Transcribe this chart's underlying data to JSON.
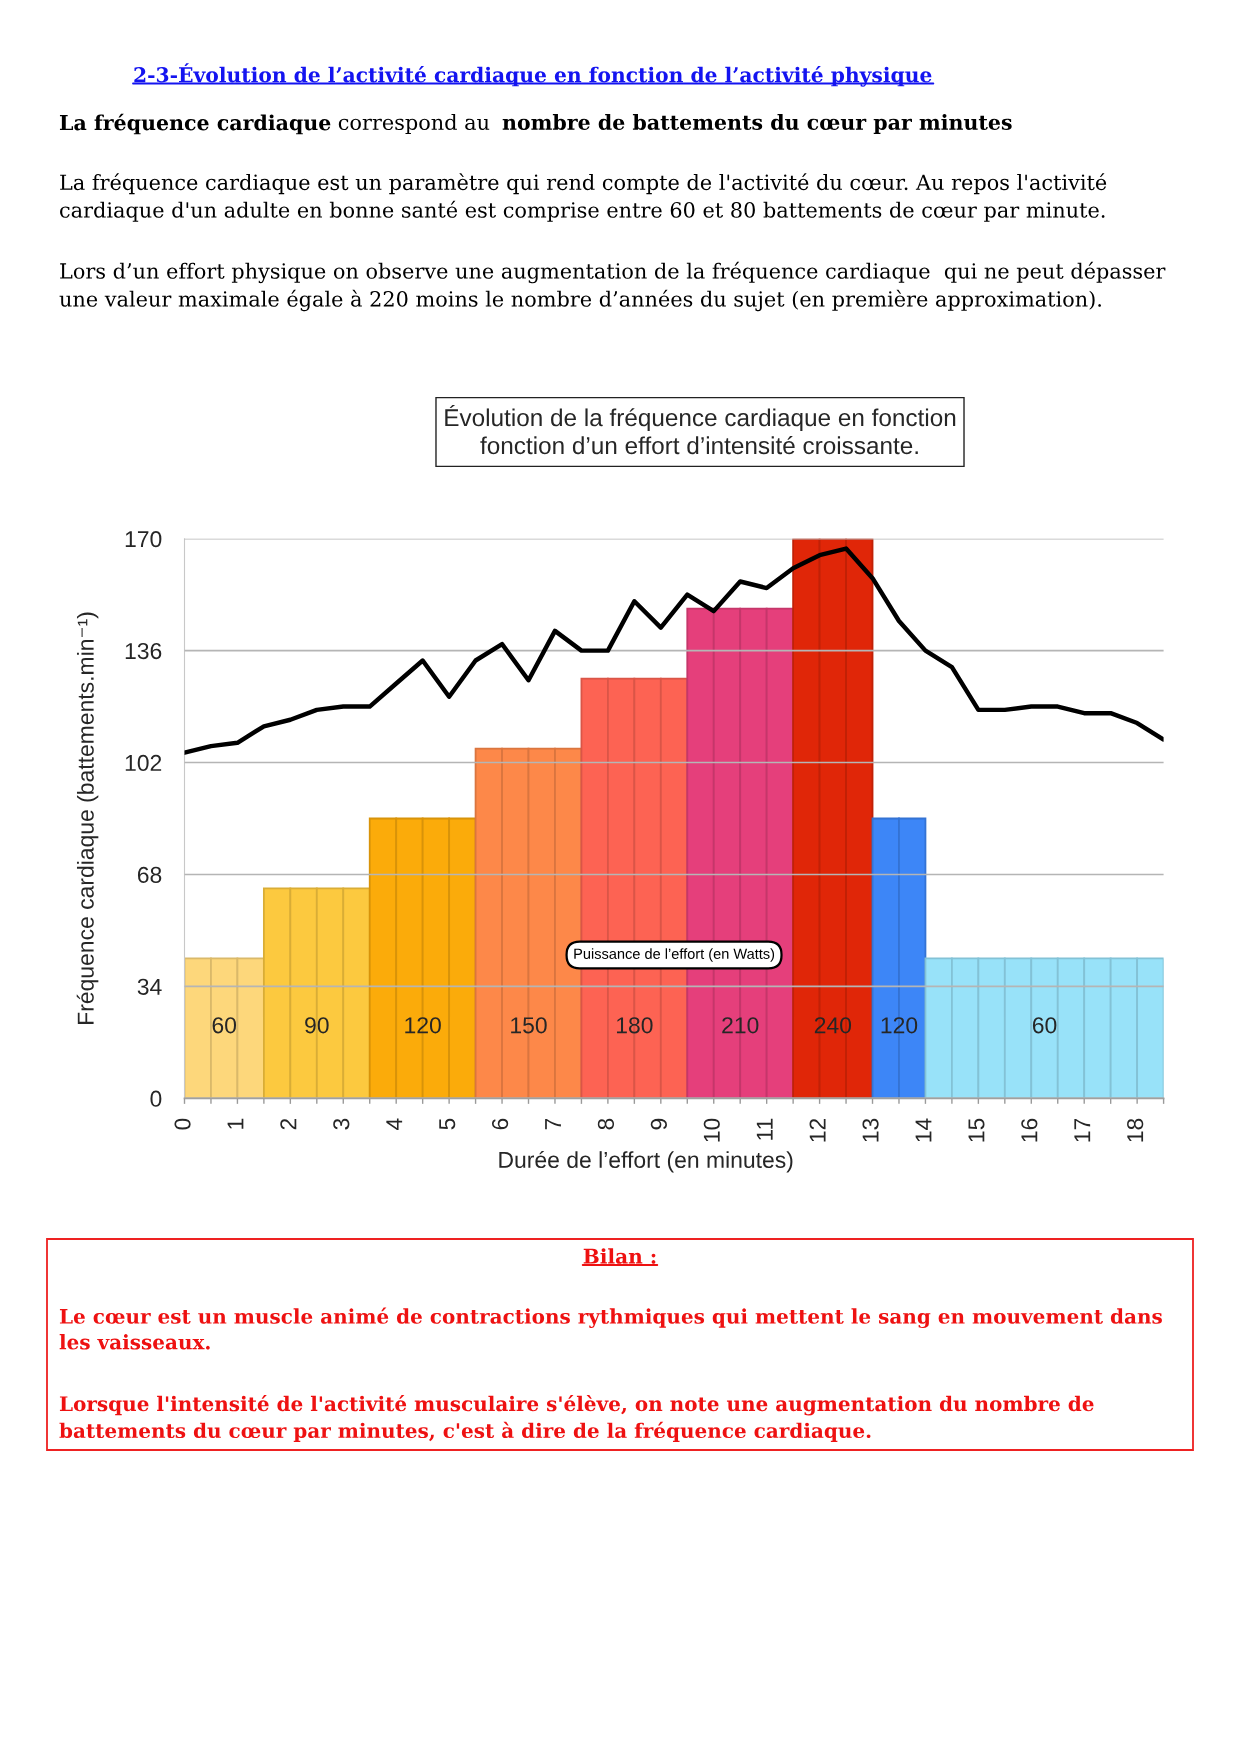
{
  "chart_data": {
    "type": "bar",
    "title": "Évolution de la fréquence cardiaque en fonction\nfonction d’un effort d’intensité croissante.",
    "xlabel": "Durée de l’effort (en minutes)",
    "ylabel": "Fréquence cardiaque (battements.min⁻¹)",
    "series": [
      {
        "axis": "y2",
        "x": [
          0.25,
          0.75,
          1.25,
          1.75,
          2.25,
          2.75,
          3.25,
          3.75,
          4.25,
          4.75,
          5.25,
          5.75,
          6.25,
          6.75,
          7.25,
          7.75,
          8.25,
          8.75,
          9.25,
          9.75,
          10.25,
          10.75,
          11.25,
          11.75,
          12.25,
          12.75,
          13.25,
          13.75,
          14.25,
          14.75,
          15.25,
          15.75,
          16.25,
          16.75,
          17.25,
          17.75,
          18.25
        ],
        "values": [
          60,
          60,
          60,
          90,
          90,
          90,
          90,
          120,
          120,
          120,
          120,
          150,
          150,
          150,
          150,
          180,
          180,
          180,
          180,
          210,
          210,
          210,
          210,
          240,
          240,
          240,
          120,
          120,
          60,
          60,
          60,
          60,
          60,
          60,
          60,
          60,
          60
        ],
        "colors": [
          "#fdd77b",
          "#fdd77b",
          "#fdd77b",
          "#fcc93f",
          "#fcc93f",
          "#fcc93f",
          "#fcc93f",
          "#fbab0a",
          "#fbab0a",
          "#fbab0a",
          "#fbab0a",
          "#fd8849",
          "#fd8849",
          "#fd8849",
          "#fd8849",
          "#fd6353",
          "#fd6353",
          "#fd6353",
          "#fd6353",
          "#e53f7b",
          "#e53f7b",
          "#e53f7b",
          "#e53f7b",
          "#e02608",
          "#e02608",
          "#e02608",
          "#3d86f7",
          "#3d86f7",
          "#98e2f9",
          "#98e2f9",
          "#98e2f9",
          "#98e2f9",
          "#98e2f9",
          "#98e2f9",
          "#98e2f9",
          "#98e2f9",
          "#98e2f9"
        ],
        "value_labels": [
          null,
          "60",
          null,
          null,
          "90",
          null,
          null,
          null,
          "120",
          null,
          null,
          null,
          "150",
          null,
          null,
          null,
          "180",
          null,
          null,
          null,
          "210",
          null,
          null,
          null,
          "240",
          null,
          "120",
          null,
          null,
          null,
          null,
          null,
          "60",
          null,
          null,
          null,
          null
        ]
      },
      {
        "type": "line",
        "color": "#000000",
        "x": [
          0,
          0.5,
          1,
          1.5,
          2,
          2.5,
          3,
          3.5,
          4,
          4.5,
          5,
          5.5,
          6,
          6.5,
          7,
          7.5,
          8,
          8.5,
          9,
          9.5,
          10,
          10.5,
          11,
          11.5,
          12,
          12.5,
          13,
          13.5,
          14,
          14.5,
          15,
          15.5,
          16,
          16.5,
          17,
          17.5,
          18,
          18.5
        ],
        "values": [
          105,
          107,
          108,
          113,
          115,
          118,
          119,
          119,
          126,
          133,
          122,
          133,
          138,
          127,
          142,
          136,
          136,
          151,
          143,
          153,
          148,
          157,
          155,
          161,
          165,
          167,
          158,
          145,
          136,
          131,
          118,
          118,
          119,
          119,
          117,
          117,
          114,
          109
        ]
      }
    ],
    "xlim": [
      0,
      18.5
    ],
    "xticks": [
      0,
      {
        "value": 0.5,
        "label": null
      },
      1,
      {
        "value": 1.5,
        "label": null
      },
      2,
      {
        "value": 2.5,
        "label": null
      },
      3,
      {
        "value": 3.5,
        "label": null
      },
      4,
      {
        "value": 4.5,
        "label": null
      },
      5,
      {
        "value": 5.5,
        "label": null
      },
      6,
      {
        "value": 6.5,
        "label": null
      },
      7,
      {
        "value": 7.5,
        "label": null
      },
      8,
      {
        "value": 8.5,
        "label": null
      },
      9,
      {
        "value": 9.5,
        "label": null
      },
      10,
      {
        "value": 10.5,
        "label": null
      },
      11,
      {
        "value": 11.5,
        "label": null
      },
      12,
      {
        "value": 12.5,
        "label": null
      },
      13,
      {
        "value": 13.5,
        "label": null
      },
      14,
      {
        "value": 14.5,
        "label": null
      },
      15,
      {
        "value": 15.5,
        "label": null
      },
      16,
      {
        "value": 16.5,
        "label": null
      },
      17,
      {
        "value": 17.5,
        "label": null
      },
      18,
      {
        "value": 18.5,
        "label": null
      }
    ],
    "ylim": [
      0,
      170
    ],
    "yticks": [
      0,
      34,
      68,
      102,
      136,
      170
    ],
    "y2lim": [
      0,
      240
    ],
    "grid": "y",
    "annotations": [
      "2-3-Évolution de l’activité cardiaque en fonction de l’activité physique",
      "La fréquence cardiaque",
      "correspond au",
      "nombre de battements du cœur par minutes",
      "La fréquence cardiaque est un paramètre qui rend compte de l'activité du cœur. Au repos l'activité\ncardiaque d'un adulte en bonne santé est comprise entre 60 et 80 battements de cœur par minute.",
      "Lors d’un effort physique on observe une augmentation de la fréquence cardiaque  qui ne peut dépasser\nune valeur maximale égale à 220 moins le nombre d’années du sujet (en première approximation).",
      "Puissance de l’effort (en Watts)",
      "Bilan :",
      "Le cœur est un muscle animé de contractions rythmiques qui mettent le sang en mouvement dans\nles vaisseaux.",
      "Lorsque l'intensité de l'activité musculaire s'élève, on note une augmentation du nombre de\nbattements du cœur par minutes, c'est à dire de la fréquence cardiaque."
    ]
  }
}
